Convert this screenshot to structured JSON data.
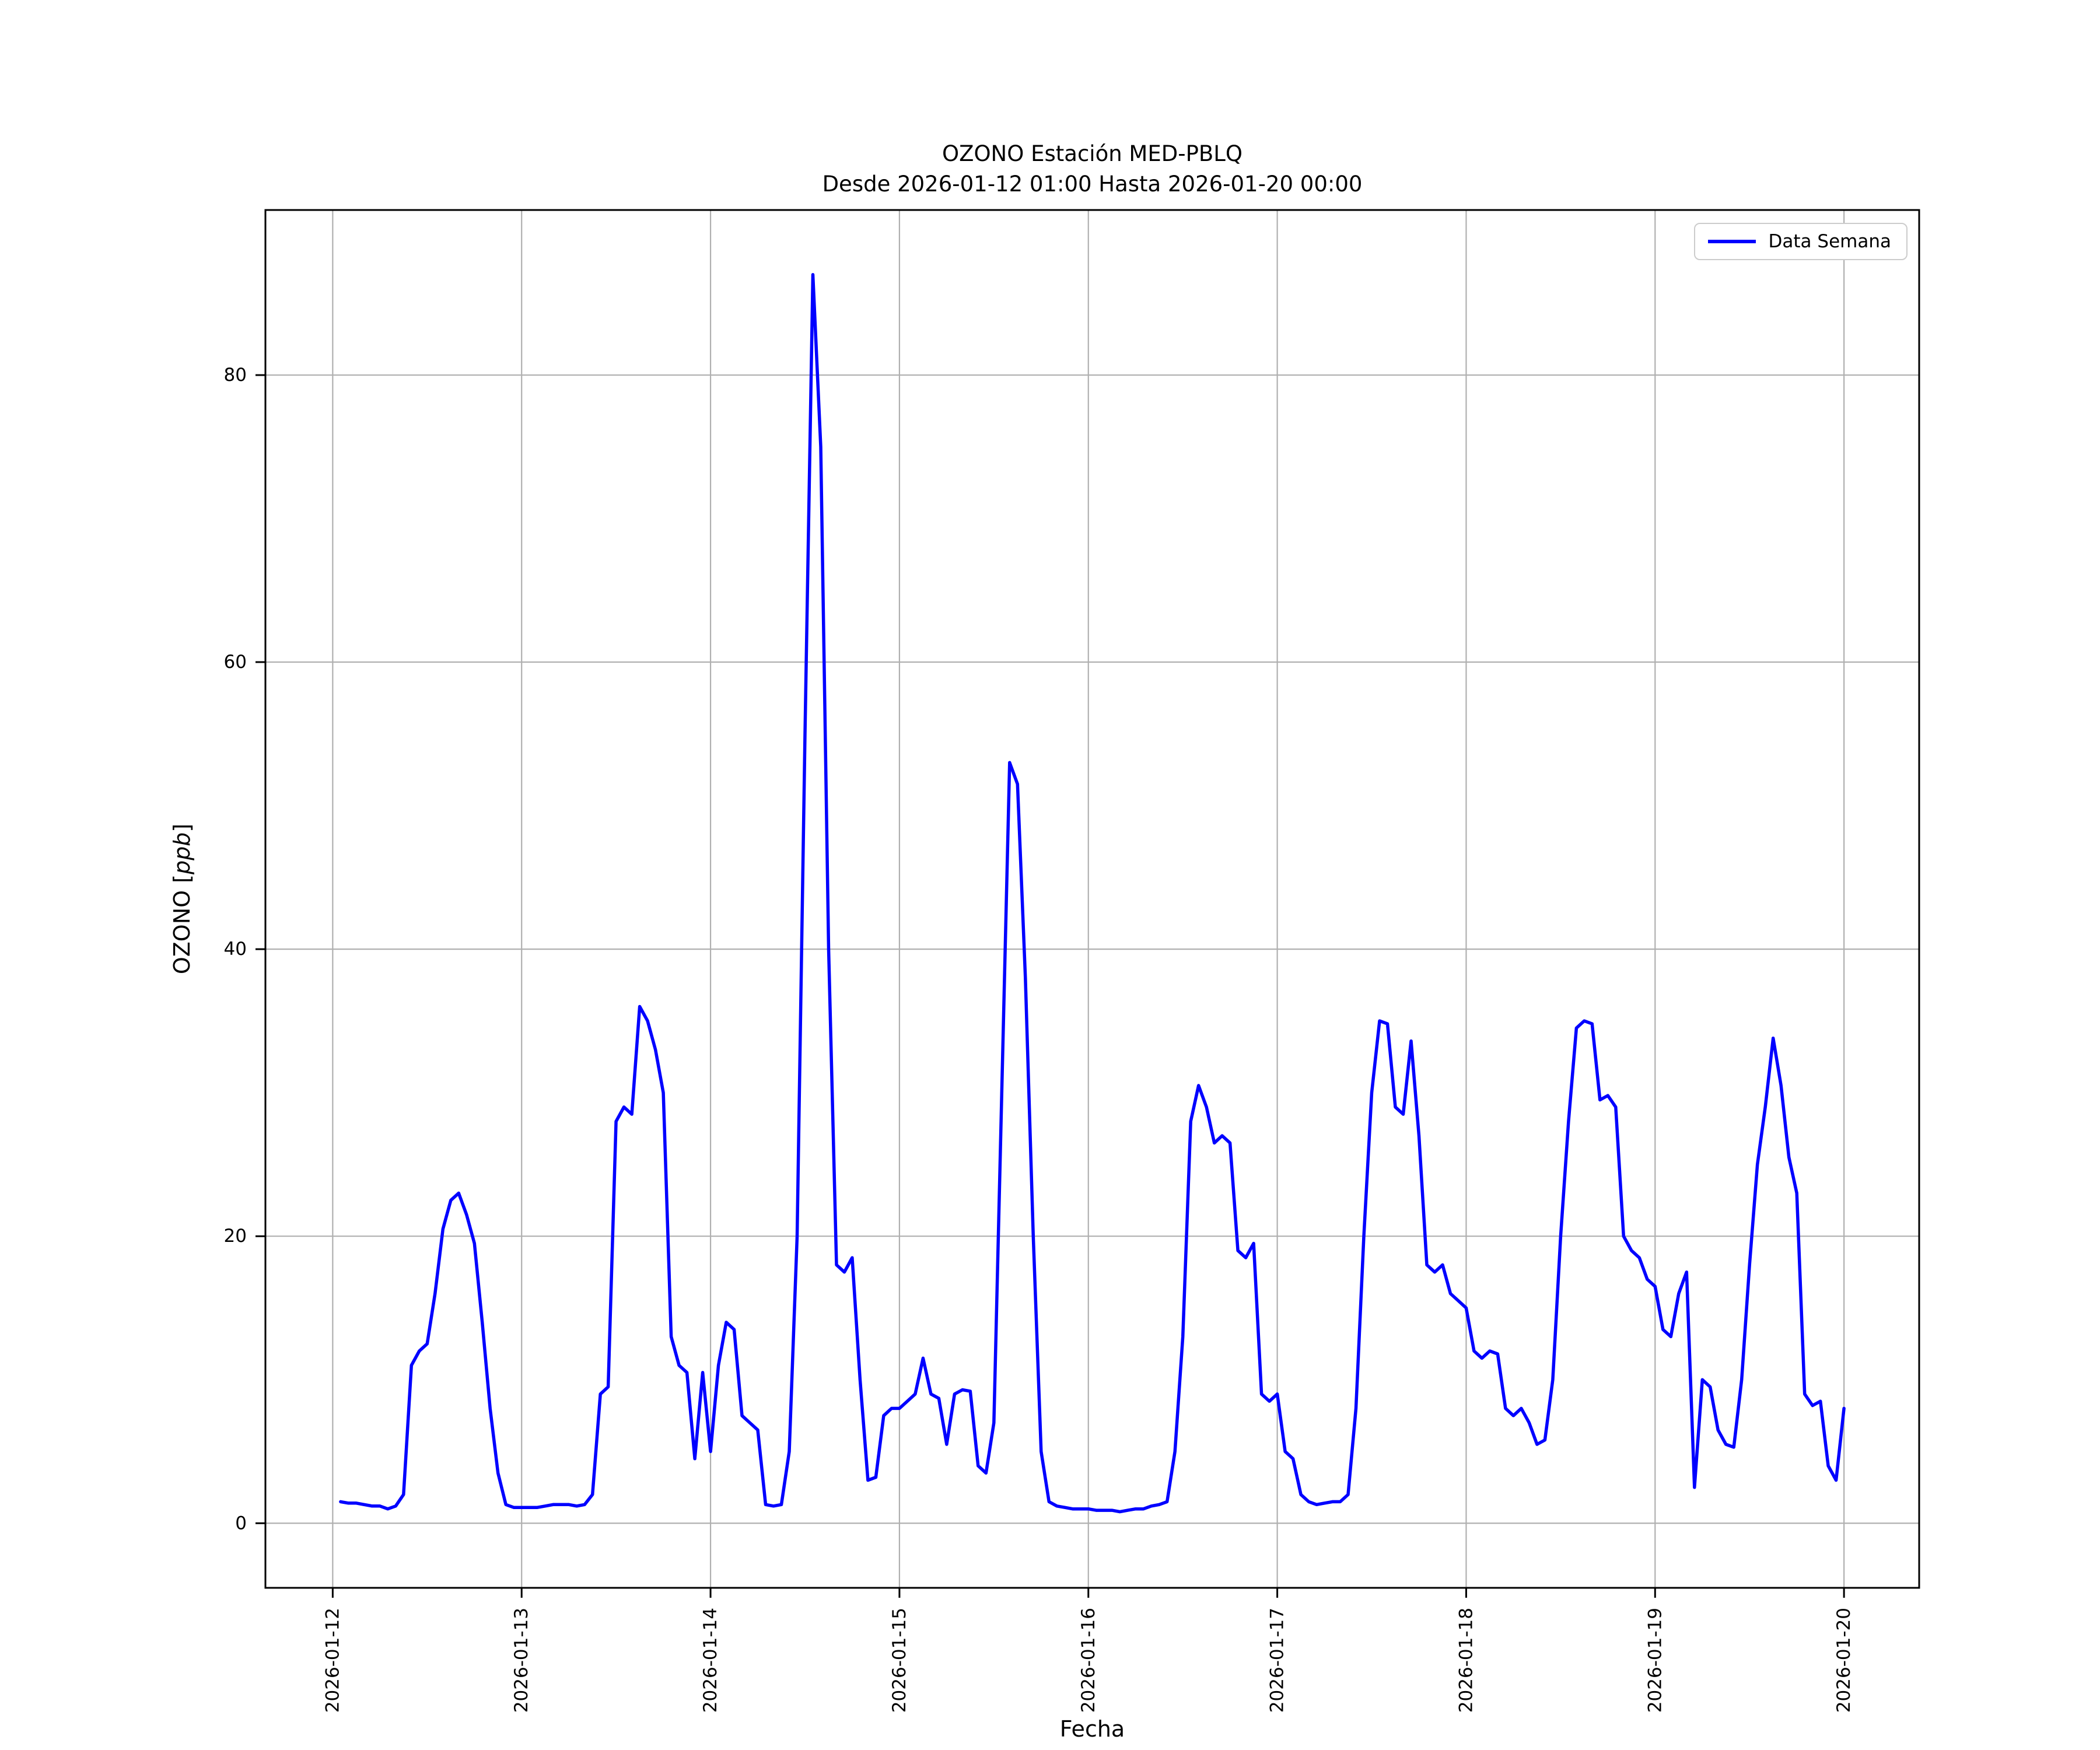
{
  "title": {
    "line1": "OZONO Estación MED-PBLQ",
    "line2": "Desde 2026-01-12 01:00 Hasta 2026-01-20 00:00"
  },
  "axes": {
    "xlabel": "Fecha",
    "ylabel_prefix": "OZONO [",
    "ylabel_italic": "ppb",
    "ylabel_suffix": "]"
  },
  "legend": {
    "label": "Data Semana",
    "position": "upper right"
  },
  "colors": {
    "line": "#0000ff",
    "grid": "#b0b0b0",
    "spine": "#000000",
    "legend_border": "#cccccc"
  },
  "chart_data": {
    "type": "line",
    "title": "OZONO Estación MED-PBLQ — Desde 2026-01-12 01:00 Hasta 2026-01-20 00:00",
    "xlabel": "Fecha",
    "ylabel": "OZONO [ppb]",
    "grid": true,
    "legend_position": "upper right",
    "x_ticks": [
      "2026-01-12",
      "2026-01-13",
      "2026-01-14",
      "2026-01-15",
      "2026-01-16",
      "2026-01-17",
      "2026-01-18",
      "2026-01-19",
      "2026-01-20"
    ],
    "y_ticks": [
      0,
      20,
      40,
      60,
      80
    ],
    "ylim": [
      -4.5,
      91.5
    ],
    "x_start": "2026-01-12 01:00",
    "x_end": "2026-01-20 00:00",
    "interval_hours": 1,
    "series": [
      {
        "name": "Data Semana",
        "color": "#0000ff",
        "values": [
          1.5,
          1.4,
          1.4,
          1.3,
          1.2,
          1.2,
          1.0,
          1.2,
          2.0,
          11.0,
          12.0,
          12.5,
          16.0,
          20.5,
          22.5,
          23.0,
          21.5,
          19.5,
          14.0,
          8.0,
          3.5,
          1.3,
          1.1,
          1.1,
          1.1,
          1.1,
          1.2,
          1.3,
          1.3,
          1.3,
          1.2,
          1.3,
          2.0,
          9.0,
          9.5,
          28.0,
          29.0,
          28.5,
          36.0,
          35.0,
          33.0,
          30.0,
          13.0,
          11.0,
          10.5,
          4.5,
          10.5,
          5.0,
          11.0,
          14.0,
          13.5,
          7.5,
          7.0,
          6.5,
          1.3,
          1.2,
          1.3,
          5.0,
          20.0,
          55.0,
          87.0,
          75.0,
          40.0,
          18.0,
          17.5,
          18.5,
          10.0,
          3.0,
          3.2,
          7.5,
          8.0,
          8.0,
          8.5,
          9.0,
          11.5,
          9.0,
          8.7,
          5.5,
          9.0,
          9.3,
          9.2,
          4.0,
          3.5,
          7.0,
          30.0,
          53.0,
          51.5,
          38.0,
          20.0,
          5.0,
          1.5,
          1.2,
          1.1,
          1.0,
          1.0,
          1.0,
          0.9,
          0.9,
          0.9,
          0.8,
          0.9,
          1.0,
          1.0,
          1.2,
          1.3,
          1.5,
          5.0,
          13.0,
          28.0,
          30.5,
          29.0,
          26.5,
          27.0,
          26.5,
          19.0,
          18.5,
          19.5,
          9.0,
          8.5,
          9.0,
          5.0,
          4.5,
          2.0,
          1.5,
          1.3,
          1.4,
          1.5,
          1.5,
          2.0,
          8.0,
          20.0,
          30.0,
          35.0,
          34.8,
          29.0,
          28.5,
          33.6,
          27.0,
          18.0,
          17.5,
          18.0,
          16.0,
          15.5,
          15.0,
          12.0,
          11.5,
          12.0,
          11.8,
          8.0,
          7.5,
          8.0,
          7.0,
          5.5,
          5.8,
          10.0,
          20.0,
          28.0,
          34.5,
          35.0,
          34.8,
          29.5,
          29.8,
          29.0,
          20.0,
          19.0,
          18.5,
          17.0,
          16.5,
          13.5,
          13.0,
          16.0,
          17.5,
          2.5,
          10.0,
          9.5,
          6.5,
          5.5,
          5.3,
          10.0,
          18.0,
          25.0,
          29.0,
          33.8,
          30.5,
          25.5,
          23.0,
          9.0,
          8.2,
          8.5,
          4.0,
          3.0,
          8.0
        ]
      }
    ]
  }
}
